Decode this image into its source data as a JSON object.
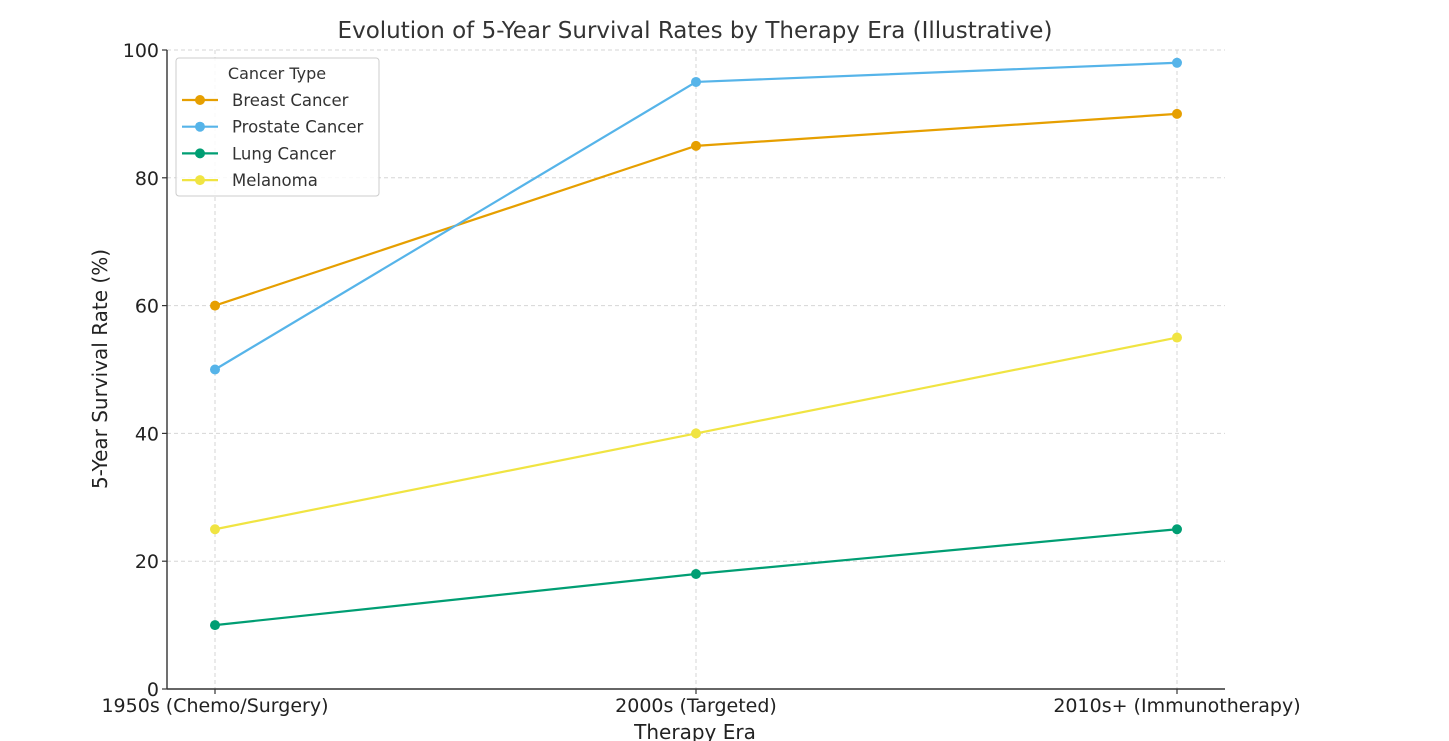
{
  "chart_data": {
    "type": "line",
    "title": "Evolution of 5-Year Survival Rates by Therapy Era (Illustrative)",
    "xlabel": "Therapy Era",
    "ylabel": "5-Year Survival Rate (%)",
    "categories": [
      "1950s (Chemo/Surgery)",
      "2000s (Targeted)",
      "2010s+ (Immunotherapy)"
    ],
    "ylim": [
      0,
      100
    ],
    "yticks": [
      0,
      20,
      40,
      60,
      80,
      100
    ],
    "grid": true,
    "legend": {
      "title": "Cancer Type",
      "placement": "top-left"
    },
    "series": [
      {
        "name": "Breast Cancer",
        "color": "#E69F00",
        "values": [
          60,
          85,
          90
        ]
      },
      {
        "name": "Prostate Cancer",
        "color": "#56B4E9",
        "values": [
          50,
          95,
          98
        ]
      },
      {
        "name": "Lung Cancer",
        "color": "#009E73",
        "values": [
          10,
          18,
          25
        ]
      },
      {
        "name": "Melanoma",
        "color": "#F0E442",
        "values": [
          25,
          40,
          55
        ]
      }
    ]
  }
}
